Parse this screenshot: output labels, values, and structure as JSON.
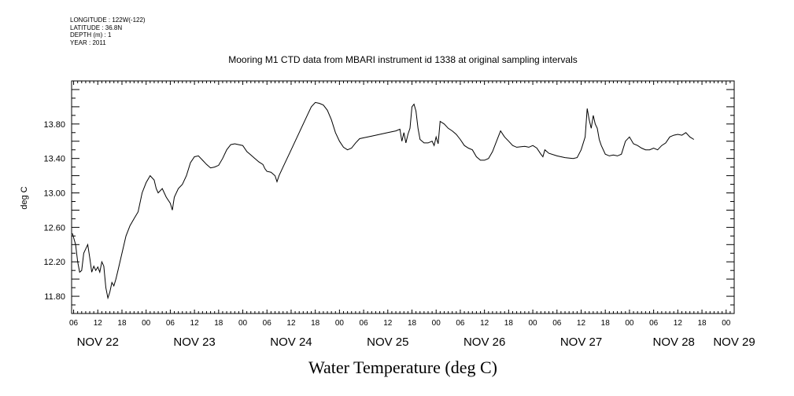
{
  "metadata": {
    "longitude": "LONGITUDE : 122W(-122)",
    "latitude": "LATITUDE : 36.8N",
    "depth": "DEPTH (m) : 1",
    "year": "YEAR : 2011"
  },
  "chart_data": {
    "type": "line",
    "title": "Mooring M1 CTD data from MBARI instrument id 1338 at original sampling intervals",
    "xlabel": "Water Temperature (deg C)",
    "ylabel": "deg C",
    "x_unit": "hours since Nov 22 2011 00:00",
    "xlim": [
      5.5,
      170
    ],
    "ylim": [
      11.6,
      14.3
    ],
    "y_ticks": [
      "11.80",
      "12.20",
      "12.60",
      "13.00",
      "13.40",
      "13.80"
    ],
    "y_tick_values": [
      11.8,
      12.2,
      12.6,
      13.0,
      13.4,
      13.8
    ],
    "x_hour_ticks": [
      "06",
      "12",
      "18",
      "00",
      "06",
      "12",
      "18",
      "00",
      "06",
      "12",
      "18",
      "00",
      "06",
      "12",
      "18",
      "00",
      "06",
      "12",
      "18",
      "00",
      "06",
      "12",
      "18",
      "00",
      "06",
      "12",
      "18",
      "00",
      "06",
      "12",
      "18",
      "00"
    ],
    "x_hour_values": [
      6,
      12,
      18,
      24,
      30,
      36,
      42,
      48,
      54,
      60,
      66,
      72,
      78,
      84,
      90,
      96,
      102,
      108,
      114,
      120,
      126,
      132,
      138,
      144,
      150,
      156,
      162,
      168,
      174,
      180,
      186,
      192
    ],
    "x_day_labels": [
      "NOV 22",
      "NOV 23",
      "NOV 24",
      "NOV 25",
      "NOV 26",
      "NOV 27",
      "NOV 28",
      "NOV 29"
    ],
    "grid": false,
    "series": [
      {
        "values": [
          [
            5.7,
            12.53
          ],
          [
            6.5,
            12.4
          ],
          [
            7,
            12.2
          ],
          [
            7.5,
            12.08
          ],
          [
            8,
            12.1
          ],
          [
            8.5,
            12.3
          ],
          [
            9,
            12.35
          ],
          [
            9.5,
            12.4
          ],
          [
            10,
            12.25
          ],
          [
            10.5,
            12.08
          ],
          [
            11,
            12.15
          ],
          [
            11.5,
            12.1
          ],
          [
            12,
            12.14
          ],
          [
            12.5,
            12.08
          ],
          [
            13,
            12.2
          ],
          [
            13.5,
            12.15
          ],
          [
            14,
            11.9
          ],
          [
            14.5,
            11.78
          ],
          [
            15,
            11.85
          ],
          [
            15.5,
            11.96
          ],
          [
            16,
            11.92
          ],
          [
            16.5,
            12.0
          ],
          [
            17,
            12.1
          ],
          [
            18,
            12.3
          ],
          [
            19,
            12.5
          ],
          [
            20,
            12.62
          ],
          [
            21,
            12.7
          ],
          [
            22,
            12.78
          ],
          [
            23,
            13.0
          ],
          [
            24,
            13.12
          ],
          [
            25,
            13.2
          ],
          [
            26,
            13.15
          ],
          [
            26.5,
            13.05
          ],
          [
            27,
            13.0
          ],
          [
            28,
            13.05
          ],
          [
            29,
            12.95
          ],
          [
            30,
            12.88
          ],
          [
            30.5,
            12.8
          ],
          [
            31,
            12.95
          ],
          [
            32,
            13.05
          ],
          [
            33,
            13.1
          ],
          [
            34,
            13.2
          ],
          [
            35,
            13.35
          ],
          [
            36,
            13.42
          ],
          [
            37,
            13.43
          ],
          [
            38,
            13.38
          ],
          [
            39,
            13.33
          ],
          [
            40,
            13.29
          ],
          [
            41,
            13.3
          ],
          [
            42,
            13.32
          ],
          [
            43,
            13.4
          ],
          [
            44,
            13.5
          ],
          [
            45,
            13.56
          ],
          [
            46,
            13.57
          ],
          [
            47,
            13.56
          ],
          [
            48,
            13.55
          ],
          [
            49,
            13.48
          ],
          [
            50,
            13.44
          ],
          [
            51,
            13.4
          ],
          [
            52,
            13.36
          ],
          [
            53,
            13.33
          ],
          [
            53.5,
            13.28
          ],
          [
            54,
            13.25
          ],
          [
            55,
            13.24
          ],
          [
            56,
            13.2
          ],
          [
            56.5,
            13.13
          ],
          [
            57,
            13.2
          ],
          [
            58,
            13.3
          ],
          [
            60,
            13.5
          ],
          [
            62,
            13.7
          ],
          [
            64,
            13.9
          ],
          [
            65,
            14.0
          ],
          [
            66,
            14.05
          ],
          [
            67,
            14.04
          ],
          [
            68,
            14.02
          ],
          [
            69,
            13.96
          ],
          [
            70,
            13.85
          ],
          [
            71,
            13.7
          ],
          [
            72,
            13.6
          ],
          [
            73,
            13.53
          ],
          [
            74,
            13.5
          ],
          [
            75,
            13.52
          ],
          [
            76,
            13.58
          ],
          [
            77,
            13.63
          ],
          [
            78,
            13.64
          ],
          [
            80,
            13.66
          ],
          [
            82,
            13.68
          ],
          [
            84,
            13.7
          ],
          [
            86,
            13.72
          ],
          [
            87,
            13.74
          ],
          [
            87.5,
            13.6
          ],
          [
            88,
            13.7
          ],
          [
            88.5,
            13.58
          ],
          [
            89,
            13.68
          ],
          [
            89.5,
            13.75
          ],
          [
            90,
            14.0
          ],
          [
            90.5,
            14.03
          ],
          [
            91,
            13.95
          ],
          [
            91.5,
            13.75
          ],
          [
            92,
            13.62
          ],
          [
            93,
            13.58
          ],
          [
            94,
            13.58
          ],
          [
            95,
            13.6
          ],
          [
            95.5,
            13.55
          ],
          [
            96,
            13.65
          ],
          [
            96.5,
            13.57
          ],
          [
            97,
            13.83
          ],
          [
            98,
            13.8
          ],
          [
            99,
            13.75
          ],
          [
            100,
            13.72
          ],
          [
            101,
            13.68
          ],
          [
            102,
            13.62
          ],
          [
            103,
            13.55
          ],
          [
            104,
            13.52
          ],
          [
            105,
            13.5
          ],
          [
            106,
            13.42
          ],
          [
            107,
            13.38
          ],
          [
            108,
            13.38
          ],
          [
            109,
            13.4
          ],
          [
            110,
            13.48
          ],
          [
            111,
            13.6
          ],
          [
            112,
            13.72
          ],
          [
            113,
            13.65
          ],
          [
            114,
            13.6
          ],
          [
            115,
            13.55
          ],
          [
            116,
            13.53
          ],
          [
            118,
            13.54
          ],
          [
            119,
            13.53
          ],
          [
            120,
            13.55
          ],
          [
            121,
            13.52
          ],
          [
            122,
            13.45
          ],
          [
            122.5,
            13.42
          ],
          [
            123,
            13.5
          ],
          [
            124,
            13.46
          ],
          [
            126,
            13.43
          ],
          [
            128,
            13.41
          ],
          [
            130,
            13.4
          ],
          [
            131,
            13.41
          ],
          [
            132,
            13.5
          ],
          [
            133,
            13.65
          ],
          [
            133.5,
            13.98
          ],
          [
            134,
            13.85
          ],
          [
            134.5,
            13.75
          ],
          [
            135,
            13.9
          ],
          [
            135.5,
            13.8
          ],
          [
            136,
            13.75
          ],
          [
            136.5,
            13.62
          ],
          [
            137,
            13.55
          ],
          [
            138,
            13.45
          ],
          [
            139,
            13.43
          ],
          [
            140,
            13.44
          ],
          [
            141,
            13.43
          ],
          [
            142,
            13.45
          ],
          [
            143,
            13.6
          ],
          [
            144,
            13.65
          ],
          [
            145,
            13.57
          ],
          [
            146,
            13.55
          ],
          [
            147,
            13.52
          ],
          [
            148,
            13.5
          ],
          [
            149,
            13.5
          ],
          [
            150,
            13.52
          ],
          [
            151,
            13.5
          ],
          [
            152,
            13.55
          ],
          [
            153,
            13.58
          ],
          [
            154,
            13.65
          ],
          [
            155,
            13.67
          ],
          [
            156,
            13.68
          ],
          [
            157,
            13.67
          ],
          [
            158,
            13.7
          ],
          [
            159,
            13.65
          ],
          [
            160,
            13.62
          ]
        ]
      }
    ]
  }
}
